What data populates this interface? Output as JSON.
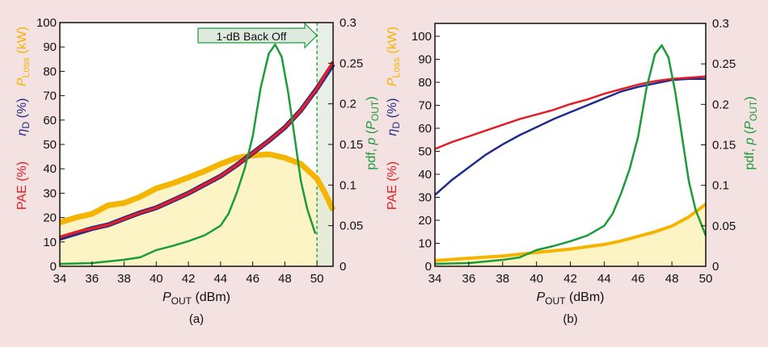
{
  "colors": {
    "background": "#f4e1e1",
    "pae": "#e31e24",
    "eta": "#1f2b8c",
    "ploss": "#f5b400",
    "ploss_fill": "#fdf4c6",
    "pdf": "#1a9c3a",
    "backoff_fill": "#dfeadf"
  },
  "chart_data": [
    {
      "type": "line",
      "panel_label": "(a)",
      "xlabel": "P_OUT (dBm)",
      "xlabel_main": "P",
      "xlabel_sub": "OUT",
      "xlabel_unit": " (dBm)",
      "left_labels": {
        "pae": "PAE (%)",
        "eta_main": "η",
        "eta_sub": "D",
        "eta_unit": " (%)",
        "ploss_main": "P",
        "ploss_sub": "Loss",
        "ploss_unit": " (kW)"
      },
      "right_label": {
        "main": "pdf, ",
        "p": "p",
        "open": " (",
        "sub_main": "P",
        "sub": "OUT",
        "close": ")"
      },
      "xlim": [
        34,
        51
      ],
      "ylim": [
        0,
        100
      ],
      "y2lim": [
        0,
        0.3
      ],
      "xticks": [
        34,
        36,
        38,
        40,
        42,
        44,
        46,
        48,
        50
      ],
      "yticks": [
        0,
        10,
        20,
        30,
        40,
        50,
        60,
        70,
        80,
        90,
        100
      ],
      "y2ticks": [
        "0",
        "0.05",
        "0.1",
        "0.15",
        "0.2",
        "0.25",
        "0.3"
      ],
      "annotation": {
        "text": "1-dB Back Off",
        "x_line": 50
      },
      "series": [
        {
          "name": "P_Loss",
          "axis": "left",
          "x": [
            34,
            35,
            36,
            37,
            38,
            39,
            40,
            41,
            42,
            43,
            44,
            45,
            46,
            47,
            48,
            49,
            50,
            50.5,
            51
          ],
          "y": [
            18,
            20,
            21.5,
            25,
            26,
            28.5,
            32,
            34,
            36.5,
            39,
            42,
            44.5,
            45.5,
            46,
            44.5,
            42,
            36,
            30,
            23
          ]
        },
        {
          "name": "η_D",
          "axis": "left",
          "x": [
            34,
            35,
            36,
            37,
            38,
            39,
            40,
            41,
            42,
            43,
            44,
            45,
            46,
            47,
            48,
            49,
            50,
            51
          ],
          "y": [
            11.5,
            13.5,
            15.5,
            17,
            19.5,
            22,
            24,
            27,
            30,
            33.5,
            37,
            41.5,
            46.5,
            51.5,
            57,
            64,
            73,
            83
          ]
        },
        {
          "name": "PAE",
          "axis": "left",
          "x": [
            34,
            35,
            36,
            37,
            38,
            39,
            40,
            41,
            42,
            43,
            44,
            45,
            46,
            47,
            48,
            49,
            50,
            51
          ],
          "y": [
            12,
            14,
            15.5,
            17,
            19.5,
            22,
            24,
            27,
            30,
            33.5,
            37,
            41.5,
            46.5,
            51.5,
            57,
            64,
            73,
            84
          ]
        },
        {
          "name": "pdf",
          "axis": "right",
          "x": [
            34,
            36,
            38,
            39,
            40,
            41,
            42,
            43,
            44,
            44.5,
            45,
            45.5,
            46,
            46.5,
            47,
            47.4,
            47.8,
            48.2,
            48.6,
            49,
            49.4,
            49.9
          ],
          "y": [
            0.003,
            0.004,
            0.008,
            0.011,
            0.02,
            0.025,
            0.031,
            0.038,
            0.05,
            0.065,
            0.09,
            0.12,
            0.16,
            0.22,
            0.262,
            0.273,
            0.258,
            0.215,
            0.16,
            0.105,
            0.07,
            0.04
          ]
        }
      ]
    },
    {
      "type": "line",
      "panel_label": "(b)",
      "xlabel": "P_OUT (dBm)",
      "xlabel_main": "P",
      "xlabel_sub": "OUT",
      "xlabel_unit": " (dBm)",
      "left_labels": {
        "pae": "PAE (%)",
        "eta_main": "η",
        "eta_sub": "D",
        "eta_unit": " (%)",
        "ploss_main": "P",
        "ploss_sub": "Loss",
        "ploss_unit": " (kW)"
      },
      "right_label": {
        "main": "pdf, ",
        "p": "p",
        "open": " (",
        "sub_main": "P",
        "sub": "OUT",
        "close": ")"
      },
      "xlim": [
        34,
        50
      ],
      "ylim": [
        0,
        105.6
      ],
      "y2lim": [
        0,
        0.3
      ],
      "xticks": [
        34,
        36,
        38,
        40,
        42,
        44,
        46,
        48,
        50
      ],
      "yticks": [
        0,
        10,
        20,
        30,
        40,
        50,
        60,
        70,
        80,
        90,
        100
      ],
      "y2ticks": [
        "0",
        "0.05",
        "0.1",
        "0.15",
        "0.2",
        "0.25",
        "0.3"
      ],
      "series": [
        {
          "name": "P_Loss",
          "axis": "left",
          "x": [
            34,
            36,
            38,
            40,
            42,
            44,
            45,
            46,
            47,
            48,
            49,
            50
          ],
          "y": [
            2.5,
            3.5,
            4.5,
            6,
            7.5,
            9.5,
            11,
            13,
            15,
            17.5,
            21.5,
            27
          ]
        },
        {
          "name": "η_D",
          "axis": "left",
          "x": [
            34,
            35,
            36,
            37,
            38,
            39,
            40,
            41,
            42,
            43,
            44,
            45,
            46,
            47,
            48,
            49,
            50
          ],
          "y": [
            31,
            37.5,
            43,
            48.5,
            53,
            57,
            60.5,
            64,
            67,
            70,
            73,
            76,
            78,
            79.5,
            81,
            81.5,
            81.5
          ]
        },
        {
          "name": "PAE",
          "axis": "left",
          "x": [
            34,
            35,
            36,
            37,
            38,
            39,
            40,
            41,
            42,
            43,
            44,
            45,
            46,
            47,
            48,
            49,
            50
          ],
          "y": [
            51,
            54,
            56.5,
            59,
            61.5,
            64,
            66,
            68,
            70.5,
            72.5,
            75,
            77,
            79,
            80.5,
            81.5,
            82,
            82.5
          ]
        },
        {
          "name": "pdf",
          "axis": "right",
          "x": [
            34,
            36,
            38,
            39,
            40,
            41,
            42,
            43,
            44,
            44.5,
            45,
            45.5,
            46,
            46.5,
            47,
            47.4,
            47.8,
            48.2,
            48.6,
            49,
            49.4,
            50
          ],
          "y": [
            0.003,
            0.004,
            0.008,
            0.011,
            0.02,
            0.025,
            0.031,
            0.038,
            0.05,
            0.065,
            0.09,
            0.12,
            0.16,
            0.22,
            0.262,
            0.273,
            0.258,
            0.215,
            0.16,
            0.105,
            0.07,
            0.038
          ]
        }
      ]
    }
  ]
}
